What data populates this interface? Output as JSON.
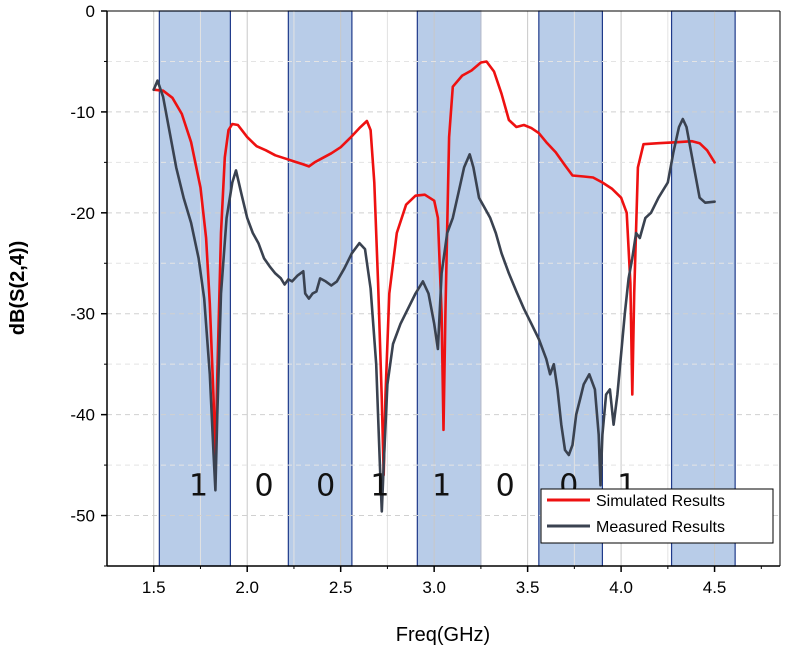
{
  "chart_data": {
    "type": "line",
    "xlabel": "Freq(GHz)",
    "ylabel": "dB(S(2,4))",
    "xlim": [
      1.25,
      4.85
    ],
    "ylim": [
      -55,
      0
    ],
    "x_ticks": [
      "1.5",
      "2.0",
      "2.5",
      "3.0",
      "3.5",
      "4.0",
      "4.5"
    ],
    "y_ticks": [
      "0",
      "-10",
      "-20",
      "-30",
      "-40",
      "-50"
    ],
    "grid": "dashed",
    "legend_position": "bottom-right",
    "colors": {
      "simulated": "#ee1111",
      "measured": "#3a4250",
      "band_fill": "#b8cce8",
      "band_edge": "#1f3a8a"
    },
    "bands": [
      [
        1.53,
        1.91
      ],
      [
        2.22,
        2.56
      ],
      [
        2.91,
        3.25
      ],
      [
        3.56,
        3.9
      ],
      [
        4.27,
        4.61
      ]
    ],
    "bit_labels": [
      {
        "text": "1",
        "x": 1.74
      },
      {
        "text": "0",
        "x": 2.09
      },
      {
        "text": "0",
        "x": 2.42
      },
      {
        "text": "1",
        "x": 2.71
      },
      {
        "text": "1",
        "x": 3.04
      },
      {
        "text": "0",
        "x": 3.38
      },
      {
        "text": "0",
        "x": 3.72
      },
      {
        "text": "1",
        "x": 4.03
      }
    ],
    "bit_label_y": -47,
    "series": [
      {
        "name": "Simulated Results",
        "color": "#ee1111",
        "points": [
          [
            1.5,
            -7.8
          ],
          [
            1.55,
            -7.9
          ],
          [
            1.6,
            -8.6
          ],
          [
            1.65,
            -10.2
          ],
          [
            1.7,
            -13.0
          ],
          [
            1.75,
            -17.5
          ],
          [
            1.78,
            -22.5
          ],
          [
            1.8,
            -29.0
          ],
          [
            1.82,
            -38.5
          ],
          [
            1.83,
            -45.5
          ],
          [
            1.84,
            -36.0
          ],
          [
            1.86,
            -22.0
          ],
          [
            1.88,
            -14.5
          ],
          [
            1.9,
            -11.8
          ],
          [
            1.92,
            -11.2
          ],
          [
            1.95,
            -11.3
          ],
          [
            2.0,
            -12.5
          ],
          [
            2.05,
            -13.4
          ],
          [
            2.1,
            -13.8
          ],
          [
            2.15,
            -14.3
          ],
          [
            2.2,
            -14.6
          ],
          [
            2.25,
            -14.9
          ],
          [
            2.3,
            -15.2
          ],
          [
            2.33,
            -15.4
          ],
          [
            2.36,
            -15.0
          ],
          [
            2.4,
            -14.6
          ],
          [
            2.45,
            -14.1
          ],
          [
            2.5,
            -13.5
          ],
          [
            2.55,
            -12.6
          ],
          [
            2.6,
            -11.6
          ],
          [
            2.64,
            -10.9
          ],
          [
            2.66,
            -11.8
          ],
          [
            2.68,
            -17.0
          ],
          [
            2.7,
            -27.0
          ],
          [
            2.72,
            -38.5
          ],
          [
            2.73,
            -46.0
          ],
          [
            2.74,
            -38.0
          ],
          [
            2.76,
            -28.0
          ],
          [
            2.8,
            -22.0
          ],
          [
            2.85,
            -19.2
          ],
          [
            2.9,
            -18.3
          ],
          [
            2.95,
            -18.2
          ],
          [
            3.0,
            -18.8
          ],
          [
            3.02,
            -20.5
          ],
          [
            3.04,
            -30.0
          ],
          [
            3.05,
            -41.5
          ],
          [
            3.06,
            -30.0
          ],
          [
            3.08,
            -12.5
          ],
          [
            3.1,
            -7.5
          ],
          [
            3.15,
            -6.4
          ],
          [
            3.2,
            -5.9
          ],
          [
            3.25,
            -5.1
          ],
          [
            3.28,
            -5.0
          ],
          [
            3.32,
            -6.0
          ],
          [
            3.36,
            -8.2
          ],
          [
            3.4,
            -10.8
          ],
          [
            3.44,
            -11.5
          ],
          [
            3.48,
            -11.3
          ],
          [
            3.52,
            -11.6
          ],
          [
            3.56,
            -12.1
          ],
          [
            3.6,
            -13.0
          ],
          [
            3.65,
            -14.0
          ],
          [
            3.7,
            -15.3
          ],
          [
            3.74,
            -16.3
          ],
          [
            3.8,
            -16.4
          ],
          [
            3.85,
            -16.5
          ],
          [
            3.9,
            -17.0
          ],
          [
            3.95,
            -17.6
          ],
          [
            4.0,
            -18.5
          ],
          [
            4.03,
            -20.0
          ],
          [
            4.05,
            -27.0
          ],
          [
            4.06,
            -38.0
          ],
          [
            4.07,
            -28.0
          ],
          [
            4.09,
            -15.5
          ],
          [
            4.12,
            -13.2
          ],
          [
            4.2,
            -13.1
          ],
          [
            4.3,
            -13.0
          ],
          [
            4.38,
            -12.9
          ],
          [
            4.42,
            -13.1
          ],
          [
            4.46,
            -13.8
          ],
          [
            4.5,
            -15.0
          ]
        ]
      },
      {
        "name": "Measured Results",
        "color": "#3a4250",
        "points": [
          [
            1.5,
            -7.8
          ],
          [
            1.52,
            -6.9
          ],
          [
            1.55,
            -8.5
          ],
          [
            1.58,
            -11.5
          ],
          [
            1.62,
            -15.5
          ],
          [
            1.66,
            -18.5
          ],
          [
            1.7,
            -21.0
          ],
          [
            1.74,
            -24.5
          ],
          [
            1.77,
            -28.5
          ],
          [
            1.8,
            -36.0
          ],
          [
            1.82,
            -44.0
          ],
          [
            1.83,
            -47.5
          ],
          [
            1.84,
            -40.0
          ],
          [
            1.86,
            -28.0
          ],
          [
            1.89,
            -20.5
          ],
          [
            1.92,
            -17.0
          ],
          [
            1.94,
            -15.8
          ],
          [
            1.97,
            -18.2
          ],
          [
            2.0,
            -20.5
          ],
          [
            2.03,
            -22.0
          ],
          [
            2.06,
            -23.0
          ],
          [
            2.09,
            -24.5
          ],
          [
            2.12,
            -25.3
          ],
          [
            2.15,
            -26.0
          ],
          [
            2.18,
            -26.5
          ],
          [
            2.2,
            -27.1
          ],
          [
            2.22,
            -26.6
          ],
          [
            2.24,
            -26.8
          ],
          [
            2.27,
            -26.2
          ],
          [
            2.3,
            -25.8
          ],
          [
            2.31,
            -28.0
          ],
          [
            2.33,
            -28.5
          ],
          [
            2.35,
            -28.0
          ],
          [
            2.37,
            -27.8
          ],
          [
            2.39,
            -26.5
          ],
          [
            2.42,
            -26.8
          ],
          [
            2.45,
            -27.2
          ],
          [
            2.48,
            -26.8
          ],
          [
            2.52,
            -25.5
          ],
          [
            2.56,
            -24.0
          ],
          [
            2.6,
            -23.0
          ],
          [
            2.63,
            -23.6
          ],
          [
            2.66,
            -27.5
          ],
          [
            2.69,
            -35.0
          ],
          [
            2.71,
            -45.0
          ],
          [
            2.72,
            -49.6
          ],
          [
            2.73,
            -45.0
          ],
          [
            2.75,
            -37.0
          ],
          [
            2.78,
            -33.0
          ],
          [
            2.82,
            -31.0
          ],
          [
            2.86,
            -29.5
          ],
          [
            2.9,
            -28.0
          ],
          [
            2.94,
            -26.8
          ],
          [
            2.97,
            -28.0
          ],
          [
            3.0,
            -31.0
          ],
          [
            3.02,
            -33.5
          ],
          [
            3.04,
            -26.0
          ],
          [
            3.07,
            -22.0
          ],
          [
            3.1,
            -20.5
          ],
          [
            3.13,
            -18.0
          ],
          [
            3.16,
            -15.5
          ],
          [
            3.19,
            -14.2
          ],
          [
            3.21,
            -15.5
          ],
          [
            3.24,
            -18.5
          ],
          [
            3.27,
            -19.5
          ],
          [
            3.3,
            -20.5
          ],
          [
            3.33,
            -22.0
          ],
          [
            3.36,
            -24.0
          ],
          [
            3.4,
            -26.0
          ],
          [
            3.44,
            -27.8
          ],
          [
            3.48,
            -29.5
          ],
          [
            3.52,
            -31.0
          ],
          [
            3.56,
            -32.5
          ],
          [
            3.6,
            -34.5
          ],
          [
            3.62,
            -36.0
          ],
          [
            3.64,
            -35.0
          ],
          [
            3.66,
            -37.5
          ],
          [
            3.68,
            -41.0
          ],
          [
            3.7,
            -43.5
          ],
          [
            3.72,
            -44.0
          ],
          [
            3.74,
            -43.0
          ],
          [
            3.76,
            -40.0
          ],
          [
            3.78,
            -38.5
          ],
          [
            3.8,
            -37.0
          ],
          [
            3.83,
            -36.0
          ],
          [
            3.86,
            -37.5
          ],
          [
            3.88,
            -42.0
          ],
          [
            3.89,
            -47.0
          ],
          [
            3.9,
            -42.0
          ],
          [
            3.92,
            -38.0
          ],
          [
            3.94,
            -37.5
          ],
          [
            3.96,
            -41.0
          ],
          [
            3.98,
            -38.0
          ],
          [
            4.0,
            -34.0
          ],
          [
            4.02,
            -30.0
          ],
          [
            4.04,
            -26.5
          ],
          [
            4.06,
            -24.5
          ],
          [
            4.08,
            -22.0
          ],
          [
            4.1,
            -22.5
          ],
          [
            4.13,
            -20.5
          ],
          [
            4.16,
            -20.0
          ],
          [
            4.2,
            -18.5
          ],
          [
            4.25,
            -17.0
          ],
          [
            4.28,
            -14.0
          ],
          [
            4.31,
            -11.5
          ],
          [
            4.33,
            -10.7
          ],
          [
            4.35,
            -11.5
          ],
          [
            4.38,
            -14.5
          ],
          [
            4.42,
            -18.5
          ],
          [
            4.45,
            -19.0
          ],
          [
            4.5,
            -18.9
          ]
        ]
      }
    ]
  }
}
